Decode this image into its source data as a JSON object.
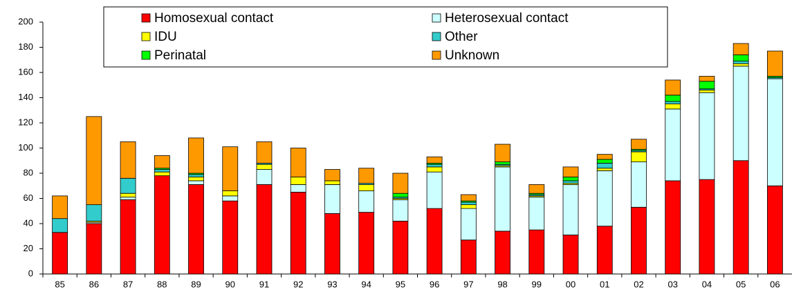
{
  "chart_data": {
    "type": "bar",
    "stacked": true,
    "grid": false,
    "legend": "top",
    "categories": [
      "85",
      "86",
      "87",
      "88",
      "89",
      "90",
      "91",
      "92",
      "93",
      "94",
      "95",
      "96",
      "97",
      "98",
      "99",
      "00",
      "01",
      "02",
      "03",
      "04",
      "05",
      "06"
    ],
    "series": [
      {
        "name": "Homosexual contact",
        "color": "#ff0000",
        "values": [
          33,
          40,
          59,
          78,
          71,
          58,
          71,
          65,
          48,
          49,
          42,
          52,
          27,
          34,
          35,
          31,
          38,
          53,
          74,
          75,
          90,
          70
        ]
      },
      {
        "name": "Heterosexual contact",
        "color": "#ccffff",
        "values": [
          0,
          1,
          2,
          0,
          3,
          4,
          12,
          6,
          23,
          17,
          17,
          29,
          25,
          51,
          26,
          40,
          44,
          36,
          57,
          69,
          75,
          85
        ]
      },
      {
        "name": "IDU",
        "color": "#ffff00",
        "values": [
          0,
          1,
          3,
          3,
          3,
          4,
          4,
          6,
          3,
          5,
          1,
          4,
          3,
          1,
          1,
          1,
          2,
          8,
          4,
          2,
          2,
          0
        ]
      },
      {
        "name": "Other",
        "color": "#33cccc",
        "values": [
          11,
          13,
          12,
          2,
          2,
          0,
          1,
          0,
          0,
          1,
          1,
          2,
          2,
          1,
          1,
          2,
          4,
          1,
          2,
          1,
          2,
          1
        ]
      },
      {
        "name": "Perinatal",
        "color": "#00ff00",
        "values": [
          0,
          0,
          0,
          1,
          1,
          0,
          0,
          0,
          0,
          0,
          3,
          1,
          1,
          2,
          1,
          3,
          3,
          1,
          5,
          6,
          5,
          1
        ]
      },
      {
        "name": "Unknown",
        "color": "#ff9900",
        "values": [
          18,
          70,
          29,
          10,
          28,
          35,
          17,
          23,
          9,
          12,
          16,
          5,
          5,
          14,
          7,
          8,
          4,
          8,
          12,
          4,
          9,
          20
        ]
      }
    ],
    "ylim": [
      0,
      200
    ],
    "yticks": [
      0,
      20,
      40,
      60,
      80,
      100,
      120,
      140,
      160,
      180,
      200
    ]
  }
}
